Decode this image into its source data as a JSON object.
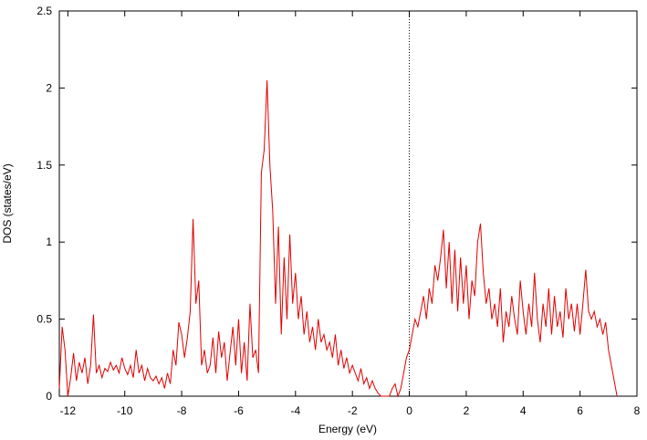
{
  "chart_data": {
    "type": "line",
    "xlabel": "Energy (eV)",
    "ylabel": "DOS (states/eV)",
    "color": "#e00000",
    "xlim": [
      -12.3,
      8
    ],
    "ylim": [
      0,
      2.5
    ],
    "xticks": [
      -12,
      -10,
      -8,
      -6,
      -4,
      -2,
      0,
      2,
      4,
      6,
      8
    ],
    "yticks": [
      0,
      0.5,
      1,
      1.5,
      2,
      2.5
    ],
    "vline_x": 0,
    "x": [
      -12.3,
      -12.2,
      -12.1,
      -12.0,
      -11.9,
      -11.8,
      -11.7,
      -11.6,
      -11.5,
      -11.4,
      -11.3,
      -11.2,
      -11.1,
      -11.0,
      -10.9,
      -10.8,
      -10.7,
      -10.6,
      -10.5,
      -10.4,
      -10.3,
      -10.2,
      -10.1,
      -10.0,
      -9.9,
      -9.8,
      -9.7,
      -9.6,
      -9.5,
      -9.4,
      -9.3,
      -9.2,
      -9.1,
      -9.0,
      -8.9,
      -8.8,
      -8.7,
      -8.6,
      -8.5,
      -8.4,
      -8.3,
      -8.2,
      -8.1,
      -8.0,
      -7.9,
      -7.8,
      -7.7,
      -7.6,
      -7.5,
      -7.4,
      -7.3,
      -7.2,
      -7.1,
      -7.0,
      -6.9,
      -6.8,
      -6.7,
      -6.6,
      -6.5,
      -6.4,
      -6.3,
      -6.2,
      -6.1,
      -6.0,
      -5.9,
      -5.8,
      -5.7,
      -5.6,
      -5.5,
      -5.4,
      -5.3,
      -5.2,
      -5.1,
      -5.0,
      -4.9,
      -4.8,
      -4.7,
      -4.6,
      -4.5,
      -4.4,
      -4.3,
      -4.2,
      -4.1,
      -4.0,
      -3.9,
      -3.8,
      -3.7,
      -3.6,
      -3.5,
      -3.4,
      -3.3,
      -3.2,
      -3.1,
      -3.0,
      -2.9,
      -2.8,
      -2.7,
      -2.6,
      -2.5,
      -2.4,
      -2.3,
      -2.2,
      -2.1,
      -2.0,
      -1.9,
      -1.8,
      -1.7,
      -1.6,
      -1.5,
      -1.4,
      -1.3,
      -1.2,
      -1.1,
      -1.0,
      -0.9,
      -0.8,
      -0.7,
      -0.6,
      -0.5,
      -0.4,
      -0.3,
      -0.2,
      -0.1,
      0.0,
      0.1,
      0.2,
      0.3,
      0.4,
      0.5,
      0.6,
      0.7,
      0.8,
      0.9,
      1.0,
      1.1,
      1.2,
      1.3,
      1.4,
      1.5,
      1.6,
      1.7,
      1.8,
      1.9,
      2.0,
      2.1,
      2.2,
      2.3,
      2.4,
      2.5,
      2.6,
      2.7,
      2.8,
      2.9,
      3.0,
      3.1,
      3.2,
      3.3,
      3.4,
      3.5,
      3.6,
      3.7,
      3.8,
      3.9,
      4.0,
      4.1,
      4.2,
      4.3,
      4.4,
      4.5,
      4.6,
      4.7,
      4.8,
      4.9,
      5.0,
      5.1,
      5.2,
      5.3,
      5.4,
      5.5,
      5.6,
      5.7,
      5.8,
      5.9,
      6.0,
      6.1,
      6.2,
      6.3,
      6.4,
      6.5,
      6.6,
      6.7,
      6.8,
      6.9,
      7.0,
      7.1,
      7.2,
      7.3
    ],
    "values": [
      0.05,
      0.45,
      0.3,
      0.0,
      0.12,
      0.28,
      0.1,
      0.22,
      0.15,
      0.25,
      0.08,
      0.2,
      0.53,
      0.15,
      0.2,
      0.12,
      0.18,
      0.16,
      0.22,
      0.17,
      0.2,
      0.15,
      0.25,
      0.18,
      0.14,
      0.2,
      0.12,
      0.3,
      0.15,
      0.2,
      0.1,
      0.18,
      0.12,
      0.1,
      0.13,
      0.08,
      0.12,
      0.05,
      0.15,
      0.08,
      0.3,
      0.2,
      0.48,
      0.4,
      0.25,
      0.38,
      0.55,
      1.15,
      0.6,
      0.75,
      0.2,
      0.3,
      0.15,
      0.2,
      0.38,
      0.15,
      0.42,
      0.25,
      0.35,
      0.1,
      0.28,
      0.45,
      0.2,
      0.5,
      0.15,
      0.35,
      0.1,
      0.6,
      0.25,
      0.3,
      0.15,
      1.45,
      1.6,
      2.05,
      1.5,
      1.2,
      0.6,
      1.1,
      0.4,
      0.9,
      0.5,
      1.05,
      0.6,
      0.8,
      0.5,
      0.65,
      0.4,
      0.55,
      0.35,
      0.45,
      0.3,
      0.5,
      0.35,
      0.4,
      0.3,
      0.35,
      0.25,
      0.4,
      0.2,
      0.3,
      0.18,
      0.25,
      0.15,
      0.2,
      0.15,
      0.1,
      0.18,
      0.08,
      0.12,
      0.05,
      0.1,
      0.05,
      0.02,
      0.0,
      0.0,
      0.0,
      0.0,
      0.05,
      0.08,
      0.0,
      0.05,
      0.15,
      0.25,
      0.3,
      0.4,
      0.5,
      0.45,
      0.55,
      0.65,
      0.5,
      0.7,
      0.6,
      0.85,
      0.75,
      0.9,
      1.08,
      0.7,
      1.0,
      0.6,
      0.95,
      0.55,
      0.9,
      0.6,
      0.85,
      0.5,
      0.75,
      0.65,
      1.0,
      1.12,
      0.8,
      0.6,
      0.7,
      0.5,
      0.6,
      0.45,
      0.7,
      0.35,
      0.55,
      0.45,
      0.65,
      0.5,
      0.4,
      0.75,
      0.55,
      0.4,
      0.6,
      0.45,
      0.8,
      0.5,
      0.35,
      0.6,
      0.45,
      0.7,
      0.4,
      0.65,
      0.45,
      0.55,
      0.38,
      0.7,
      0.5,
      0.6,
      0.42,
      0.6,
      0.4,
      0.6,
      0.82,
      0.55,
      0.5,
      0.55,
      0.45,
      0.5,
      0.4,
      0.48,
      0.3,
      0.2,
      0.1,
      0.0
    ]
  }
}
